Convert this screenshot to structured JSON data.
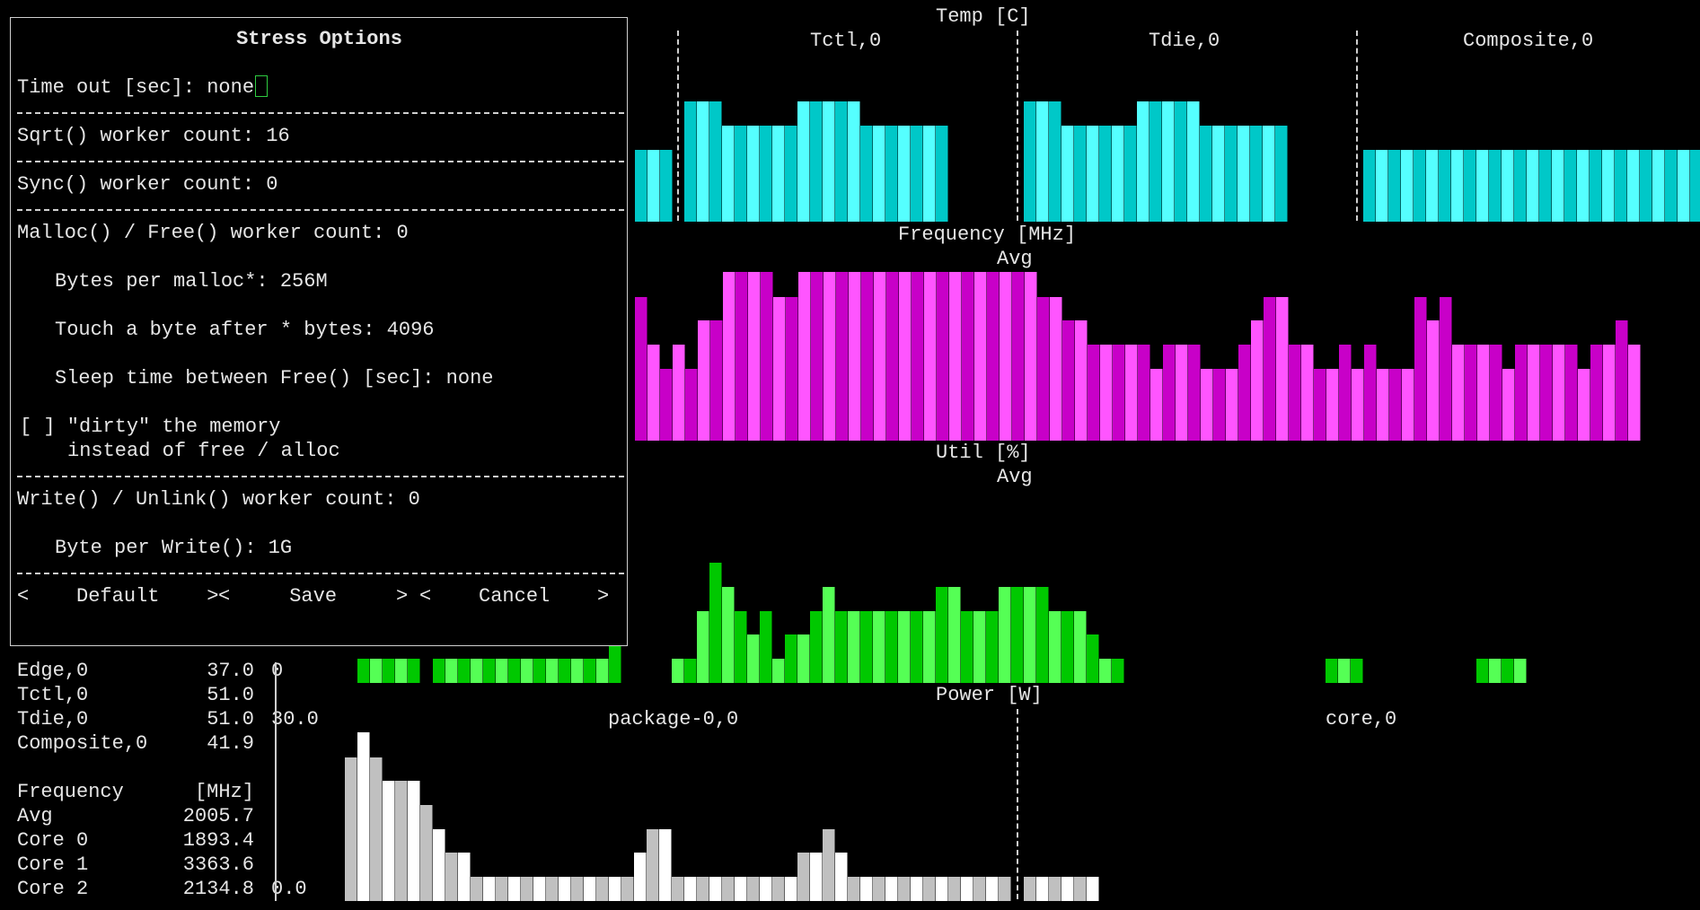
{
  "temp": {
    "title": "Temp [C]",
    "labels": [
      "Tctl,0",
      "Tdie,0",
      "Composite,0"
    ],
    "color_a": "#00c8c8",
    "color_b": "#55ffff"
  },
  "frequency": {
    "title": "Frequency [MHz]",
    "sub": "Avg",
    "color_a": "#c800c8",
    "color_b": "#ff55ff"
  },
  "util": {
    "title": "Util [%]",
    "sub": "Avg",
    "color_a": "#00c800",
    "color_b": "#55ff55"
  },
  "power": {
    "title": "Power [W]",
    "labels": [
      "package-0,0",
      "core,0"
    ],
    "color_a": "#c0c0c0",
    "color_b": "#ffffff"
  },
  "dialog": {
    "title": "Stress Options",
    "timeout_label": "Time out [sec]: ",
    "timeout_value": "none",
    "sqrt_line": "Sqrt() worker count: 16",
    "sync_line": "Sync() worker count: 0",
    "malloc_line": "Malloc() / Free() worker count: 0",
    "bytes_line": "Bytes per malloc*: 256M",
    "touch_line": "Touch a byte after * bytes: 4096",
    "sleep_line": "Sleep time between Free() [sec]: none",
    "dirty_line1": "[ ] \"dirty\" the memory",
    "dirty_line2": "instead of free / alloc",
    "write_line": "Write() / Unlink() worker count: 0",
    "bytewrite_line": "Byte per Write(): 1G",
    "btn_default": "<    Default    >",
    "btn_save": "<     Save     >",
    "btn_cancel": "<    Cancel    >"
  },
  "sidebar": {
    "rows": [
      {
        "name": "Edge,0",
        "value": "37.0",
        "axis": "0"
      },
      {
        "name": "Tctl,0",
        "value": "51.0",
        "axis": ""
      },
      {
        "name": "Tdie,0",
        "value": "51.0",
        "axis": "30.0"
      },
      {
        "name": "Composite,0",
        "value": "41.9",
        "axis": ""
      },
      {
        "name": "",
        "value": "",
        "axis": ""
      },
      {
        "name": "Frequency",
        "value": "[MHz]",
        "axis": ""
      },
      {
        "name": "Avg",
        "value": "2005.7",
        "axis": ""
      },
      {
        "name": "Core 0",
        "value": "1893.4",
        "axis": ""
      },
      {
        "name": "Core 1",
        "value": "3363.6",
        "axis": ""
      },
      {
        "name": "Core 2",
        "value": "2134.8",
        "axis": "0.0"
      }
    ]
  }
}
